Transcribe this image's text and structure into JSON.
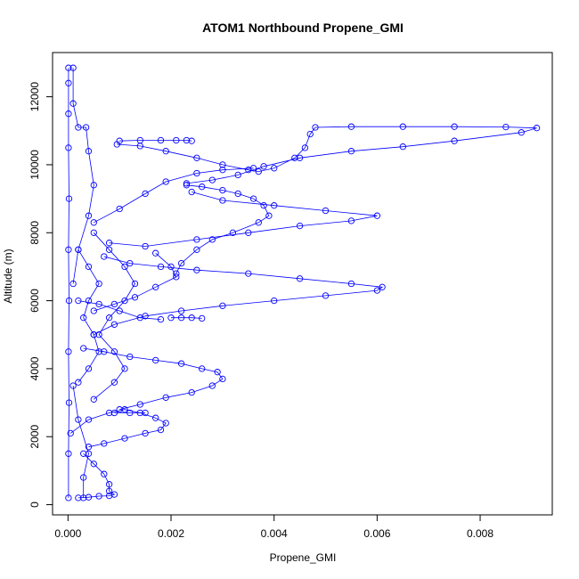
{
  "chart_data": {
    "type": "scatter",
    "title": "ATOM1 Northbound Propene_GMI",
    "xlabel": "Propene_GMI",
    "ylabel": "Altitude (m)",
    "xlim": [
      -0.0003,
      0.0094
    ],
    "ylim": [
      -300,
      13300
    ],
    "xticks": [
      0,
      0.002,
      0.004,
      0.006,
      0.008
    ],
    "xtick_labels": [
      "0.000",
      "0.002",
      "0.004",
      "0.006",
      "0.008"
    ],
    "yticks": [
      0,
      2000,
      4000,
      6000,
      8000,
      10000,
      12000
    ],
    "ytick_labels": [
      "0",
      "2000",
      "4000",
      "6000",
      "8000",
      "10000",
      "12000"
    ],
    "marker": "open-circle",
    "line": true,
    "color": "#0000ff",
    "grid": false,
    "series": [
      {
        "points": [
          [
            1e-05,
            200
          ],
          [
            1e-05,
            1500
          ],
          [
            2e-05,
            3000
          ],
          [
            1e-05,
            4500
          ],
          [
            2e-05,
            6000
          ],
          [
            1e-05,
            7500
          ],
          [
            2e-05,
            9000
          ],
          [
            1e-05,
            10500
          ],
          [
            1e-05,
            11500
          ],
          [
            1e-05,
            12400
          ],
          [
            1e-05,
            12850
          ]
        ]
      },
      {
        "points": [
          [
            0.0001,
            12850
          ],
          [
            0.0001,
            11800
          ],
          [
            0.0002,
            11100
          ],
          [
            0.00035,
            11100
          ],
          [
            0.0004,
            10400
          ],
          [
            0.0005,
            9400
          ],
          [
            0.0004,
            8500
          ],
          [
            0.0002,
            7500
          ],
          [
            0.0001,
            6500
          ]
        ]
      },
      {
        "points": [
          [
            0.001,
            10700
          ],
          [
            0.0014,
            10720
          ],
          [
            0.0018,
            10720
          ],
          [
            0.0021,
            10720
          ],
          [
            0.0023,
            10720
          ],
          [
            0.0024,
            10700
          ]
        ]
      },
      {
        "points": [
          [
            0.00095,
            10600
          ],
          [
            0.0014,
            10550
          ],
          [
            0.0019,
            10400
          ],
          [
            0.0025,
            10200
          ],
          [
            0.003,
            10000
          ],
          [
            0.0035,
            9850
          ],
          [
            0.0037,
            9800
          ],
          [
            0.004,
            9900
          ],
          [
            0.0044,
            10200
          ],
          [
            0.0046,
            10500
          ],
          [
            0.0047,
            10900
          ],
          [
            0.0048,
            11100
          ],
          [
            0.0055,
            11120
          ],
          [
            0.0065,
            11120
          ],
          [
            0.0075,
            11120
          ],
          [
            0.0085,
            11110
          ],
          [
            0.0091,
            11080
          ],
          [
            0.0088,
            10950
          ],
          [
            0.0075,
            10700
          ],
          [
            0.0065,
            10530
          ],
          [
            0.0055,
            10400
          ],
          [
            0.0045,
            10200
          ],
          [
            0.0038,
            9950
          ],
          [
            0.0033,
            9700
          ],
          [
            0.0028,
            9550
          ],
          [
            0.0023,
            9450
          ]
        ]
      },
      {
        "points": [
          [
            0.0023,
            9400
          ],
          [
            0.0026,
            9350
          ],
          [
            0.003,
            9250
          ],
          [
            0.0033,
            9150
          ],
          [
            0.0036,
            9000
          ],
          [
            0.0038,
            8800
          ],
          [
            0.0039,
            8500
          ],
          [
            0.0037,
            8300
          ],
          [
            0.0032,
            8000
          ],
          [
            0.0028,
            7800
          ],
          [
            0.0025,
            7500
          ],
          [
            0.0022,
            7100
          ],
          [
            0.0021,
            6800
          ]
        ]
      },
      {
        "points": [
          [
            0.0005,
            8300
          ],
          [
            0.001,
            8700
          ],
          [
            0.0015,
            9150
          ],
          [
            0.0019,
            9500
          ],
          [
            0.0025,
            9750
          ],
          [
            0.003,
            9850
          ],
          [
            0.0036,
            9900
          ]
        ]
      },
      {
        "points": [
          [
            0.0024,
            9200
          ],
          [
            0.003,
            8950
          ],
          [
            0.004,
            8800
          ],
          [
            0.005,
            8650
          ],
          [
            0.006,
            8500
          ],
          [
            0.0055,
            8350
          ],
          [
            0.0045,
            8200
          ],
          [
            0.0035,
            8000
          ],
          [
            0.0025,
            7800
          ],
          [
            0.0015,
            7600
          ],
          [
            0.0008,
            7700
          ]
        ]
      },
      {
        "points": [
          [
            0.0007,
            7300
          ],
          [
            0.0012,
            7100
          ],
          [
            0.0018,
            7000
          ],
          [
            0.0025,
            6900
          ],
          [
            0.0035,
            6800
          ],
          [
            0.0045,
            6650
          ],
          [
            0.0055,
            6500
          ],
          [
            0.0061,
            6400
          ],
          [
            0.006,
            6300
          ],
          [
            0.005,
            6150
          ],
          [
            0.004,
            6000
          ],
          [
            0.003,
            5850
          ],
          [
            0.0022,
            5700
          ],
          [
            0.0015,
            5550
          ],
          [
            0.0009,
            5300
          ],
          [
            0.0005,
            5000
          ]
        ]
      },
      {
        "points": [
          [
            0.0017,
            7400
          ],
          [
            0.002,
            7000
          ],
          [
            0.0021,
            6700
          ],
          [
            0.0017,
            6400
          ],
          [
            0.0013,
            6100
          ],
          [
            0.0009,
            5900
          ],
          [
            0.0005,
            5700
          ]
        ]
      },
      {
        "points": [
          [
            0.002,
            5500
          ],
          [
            0.0022,
            5500
          ],
          [
            0.0024,
            5500
          ],
          [
            0.0026,
            5480
          ]
        ]
      },
      {
        "points": [
          [
            0.0002,
            6000
          ],
          [
            0.0006,
            5900
          ],
          [
            0.001,
            5700
          ],
          [
            0.0014,
            5500
          ],
          [
            0.0018,
            5450
          ]
        ]
      },
      {
        "points": [
          [
            0.0003,
            4600
          ],
          [
            0.0007,
            4500
          ],
          [
            0.0012,
            4350
          ],
          [
            0.0017,
            4250
          ],
          [
            0.0022,
            4150
          ],
          [
            0.0026,
            4000
          ],
          [
            0.0029,
            3900
          ],
          [
            0.003,
            3700
          ],
          [
            0.0028,
            3500
          ],
          [
            0.0024,
            3300
          ],
          [
            0.0019,
            3150
          ],
          [
            0.0014,
            2950
          ],
          [
            0.001,
            2800
          ]
        ]
      },
      {
        "points": [
          [
            0.0009,
            2700
          ],
          [
            0.0012,
            2700
          ],
          [
            0.0015,
            2700
          ]
        ]
      },
      {
        "points": [
          [
            5e-05,
            2100
          ],
          [
            0.0004,
            2500
          ],
          [
            0.0008,
            2700
          ],
          [
            0.0011,
            2800
          ],
          [
            0.0014,
            2700
          ],
          [
            0.0017,
            2550
          ],
          [
            0.0019,
            2400
          ],
          [
            0.0018,
            2200
          ],
          [
            0.0015,
            2100
          ],
          [
            0.0011,
            1950
          ],
          [
            0.0007,
            1800
          ],
          [
            0.0004,
            1700
          ]
        ]
      },
      {
        "points": [
          [
            0.0003,
            1500
          ],
          [
            0.0005,
            1200
          ],
          [
            0.0007,
            900
          ],
          [
            0.0008,
            600
          ],
          [
            0.0008,
            400
          ],
          [
            0.0009,
            300
          ],
          [
            0.0008,
            260
          ],
          [
            0.0006,
            250
          ],
          [
            0.0004,
            220
          ],
          [
            0.0002,
            200
          ]
        ]
      },
      {
        "points": [
          [
            0.0005,
            3100
          ],
          [
            0.0009,
            3600
          ],
          [
            0.0011,
            4000
          ],
          [
            0.0009,
            4500
          ],
          [
            0.0006,
            5000
          ],
          [
            0.0008,
            5500
          ],
          [
            0.0011,
            6000
          ],
          [
            0.0013,
            6500
          ],
          [
            0.0011,
            7000
          ],
          [
            0.0008,
            7500
          ],
          [
            0.0005,
            8000
          ]
        ]
      },
      {
        "points": [
          [
            0.0002,
            3600
          ],
          [
            0.0004,
            4000
          ],
          [
            0.0006,
            4500
          ],
          [
            0.0005,
            5000
          ],
          [
            0.0003,
            5500
          ],
          [
            0.0004,
            6000
          ],
          [
            0.0006,
            6500
          ],
          [
            0.0004,
            7000
          ],
          [
            0.0002,
            7500
          ]
        ]
      },
      {
        "points": [
          [
            0.0003,
            200
          ],
          [
            0.0003,
            800
          ],
          [
            0.0004,
            1500
          ],
          [
            0.0002,
            2500
          ],
          [
            0.0001,
            3500
          ]
        ]
      }
    ]
  }
}
